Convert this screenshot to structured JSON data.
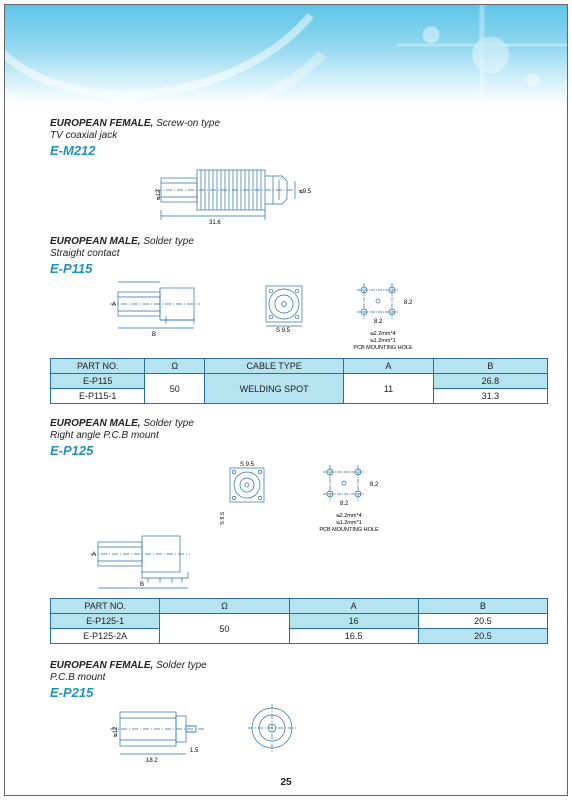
{
  "colors": {
    "accent": "#1f91c0",
    "border": "#2a6ea0",
    "table_bg": "#b5e3f0",
    "banner_top": "#5ec5e8"
  },
  "page_number": "25",
  "sections": [
    {
      "title_bold": "EUROPEAN FEMALE,",
      "title_plain": " Screw-on type",
      "subtitle": "TV coaxial jack",
      "code": "E-M212",
      "drawing": {
        "body_len": "31.6",
        "tip": "ᴓ9.5",
        "dia": "ᴓ12"
      }
    },
    {
      "title_bold": "EUROPEAN MALE,",
      "title_plain": " Solder type",
      "subtitle": "Straight contact",
      "code": "E-P115",
      "drawing": {
        "A": "A",
        "B": "B",
        "sq": "S 9.5",
        "pcb_w": "8.2",
        "pcb_h": "8.2",
        "note1": "ᴓ2.2mm*4",
        "note2": "ᴓ1.2mm*1",
        "note3": "PCB MOUNTING HOLE"
      },
      "table": {
        "columns": [
          "PART NO.",
          "Ω",
          "CABLE TYPE",
          "A",
          "B"
        ],
        "col_widths": [
          "19%",
          "12%",
          "28%",
          "18%",
          "23%"
        ],
        "rows": [
          [
            {
              "v": "E-P115",
              "bg": true
            },
            {
              "v": "50",
              "bg": false,
              "rowspan": 2
            },
            {
              "v": "WELDING SPOT",
              "bg": true,
              "rowspan": 2
            },
            {
              "v": "11",
              "bg": false,
              "rowspan": 2
            },
            {
              "v": "26.8",
              "bg": true
            }
          ],
          [
            {
              "v": "E-P115-1",
              "bg": false
            },
            {
              "v": "31.3",
              "bg": false
            }
          ]
        ]
      }
    },
    {
      "title_bold": "EUROPEAN MALE,",
      "title_plain": " Solder type",
      "subtitle": "Right angle P.C.B mount",
      "code": "E-P125",
      "drawing": {
        "A": "A",
        "B": "B",
        "sq": "S 9.5",
        "sq2": "S 9.5",
        "pcb_w": "8.2",
        "pcb_h": "8.2",
        "note1": "ᴓ2.2mm*4",
        "note2": "ᴓ1.2mm*1",
        "note3": "PCB MOUNTING HOLE"
      },
      "table": {
        "columns": [
          "PART NO.",
          "Ω",
          "A",
          "B"
        ],
        "col_widths": [
          "22%",
          "26%",
          "26%",
          "26%"
        ],
        "rows": [
          [
            {
              "v": "E-P125-1",
              "bg": true
            },
            {
              "v": "50",
              "bg": false,
              "rowspan": 2
            },
            {
              "v": "16",
              "bg": true
            },
            {
              "v": "20.5",
              "bg": false
            }
          ],
          [
            {
              "v": "E-P125-2A",
              "bg": false
            },
            {
              "v": "16.5",
              "bg": false
            },
            {
              "v": "20.5",
              "bg": true
            }
          ]
        ]
      }
    },
    {
      "title_bold": "EUROPEAN FEMALE,",
      "title_plain": " Solder type",
      "subtitle": "P.C.B mount",
      "code": "E-P215",
      "drawing": {
        "body_len": "18.2",
        "dia": "ᴓ12",
        "pin": "1.5"
      }
    }
  ]
}
